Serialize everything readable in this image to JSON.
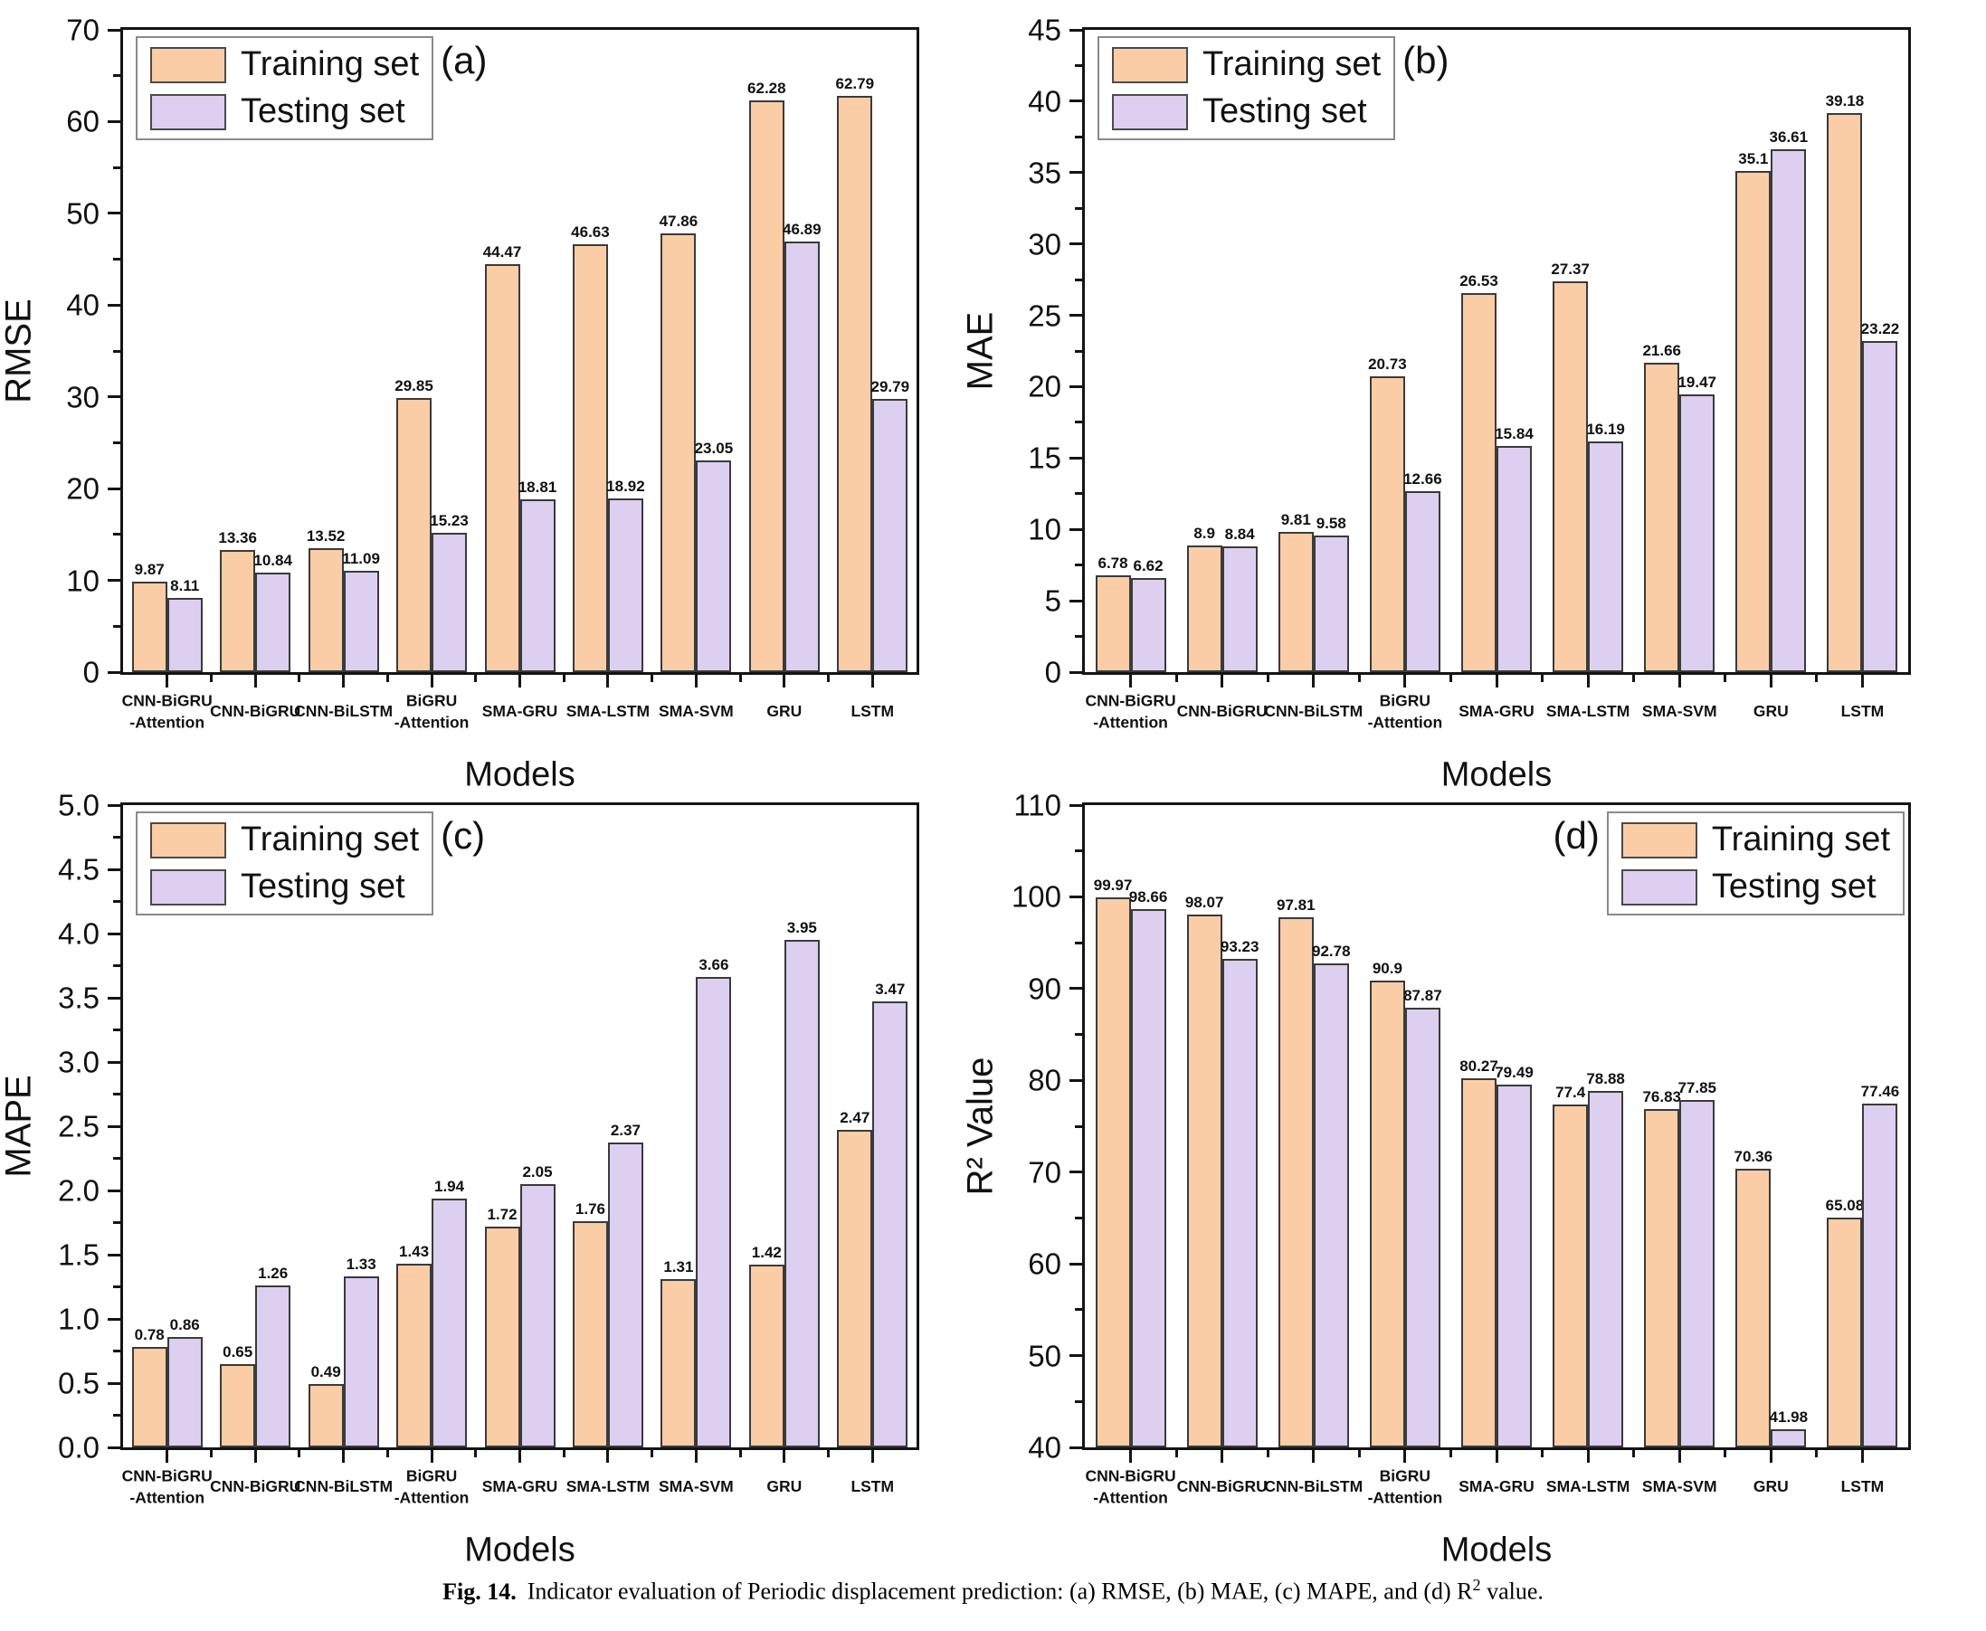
{
  "caption": {
    "prefix": "Fig. 14.",
    "body": "Indicator evaluation of Periodic displacement prediction: (a) RMSE, (b) MAE, (c) MAPE, and (d) R",
    "sup": "2",
    "tail": " value."
  },
  "colors": {
    "training_fill": "#FBCDA6",
    "testing_fill": "#DDCFF0",
    "bar_border": "#3a3a3a",
    "axis": "#141414"
  },
  "legend_labels": [
    "Training set",
    "Testing set"
  ],
  "category_lines": [
    [
      "CNN-BiGRU",
      "-Attention"
    ],
    [
      "CNN-BiGRU"
    ],
    [
      "CNN-BiLSTM"
    ],
    [
      "BiGRU",
      "-Attention"
    ],
    [
      "SMA-GRU"
    ],
    [
      "SMA-LSTM"
    ],
    [
      "SMA-SVM"
    ],
    [
      "GRU"
    ],
    [
      "LSTM"
    ]
  ],
  "chart_data": [
    {
      "id": "a",
      "type": "bar",
      "panel_label": "(a)",
      "ylabel": "RMSE",
      "xlabel": "Models",
      "ylim": [
        0,
        70
      ],
      "ytick": 10,
      "yminor": 5,
      "ydecimals": 0,
      "grid": false,
      "legend_position": "top-left",
      "categories": [
        "CNN-BiGRU-Attention",
        "CNN-BiGRU",
        "CNN-BiLSTM",
        "BiGRU-Attention",
        "SMA-GRU",
        "SMA-LSTM",
        "SMA-SVM",
        "GRU",
        "LSTM"
      ],
      "series": [
        {
          "name": "Training set",
          "values": [
            9.87,
            13.36,
            13.52,
            29.85,
            44.47,
            46.63,
            47.86,
            62.28,
            62.79
          ]
        },
        {
          "name": "Testing set",
          "values": [
            8.11,
            10.84,
            11.09,
            15.23,
            18.81,
            18.92,
            23.05,
            46.89,
            29.79
          ]
        }
      ]
    },
    {
      "id": "b",
      "type": "bar",
      "panel_label": "(b)",
      "ylabel": "MAE",
      "xlabel": "Models",
      "ylim": [
        0,
        45
      ],
      "ytick": 5,
      "yminor": 2.5,
      "ydecimals": 0,
      "grid": false,
      "legend_position": "top-left",
      "categories": [
        "CNN-BiGRU-Attention",
        "CNN-BiGRU",
        "CNN-BiLSTM",
        "BiGRU-Attention",
        "SMA-GRU",
        "SMA-LSTM",
        "SMA-SVM",
        "GRU",
        "LSTM"
      ],
      "series": [
        {
          "name": "Training set",
          "values": [
            6.78,
            8.9,
            9.81,
            20.73,
            26.53,
            27.37,
            21.66,
            35.1,
            39.18
          ]
        },
        {
          "name": "Testing set",
          "values": [
            6.62,
            8.84,
            9.58,
            12.66,
            15.84,
            16.19,
            19.47,
            36.61,
            23.22
          ]
        }
      ]
    },
    {
      "id": "c",
      "type": "bar",
      "panel_label": "(c)",
      "ylabel": "MAPE",
      "xlabel": "Models",
      "ylim": [
        0,
        5.0
      ],
      "ytick": 0.5,
      "yminor": 0.25,
      "ydecimals": 1,
      "grid": false,
      "legend_position": "top-left",
      "categories": [
        "CNN-BiGRU-Attention",
        "CNN-BiGRU",
        "CNN-BiLSTM",
        "BiGRU-Attention",
        "SMA-GRU",
        "SMA-LSTM",
        "SMA-SVM",
        "GRU",
        "LSTM"
      ],
      "series": [
        {
          "name": "Training set",
          "values": [
            0.78,
            0.65,
            0.49,
            1.43,
            1.72,
            1.76,
            1.31,
            1.42,
            2.47
          ]
        },
        {
          "name": "Testing set",
          "values": [
            0.86,
            1.26,
            1.33,
            1.94,
            2.05,
            2.37,
            3.66,
            3.95,
            3.47
          ]
        }
      ]
    },
    {
      "id": "d",
      "type": "bar",
      "panel_label": "(d)",
      "ylabel": "R² Value",
      "xlabel": "Models",
      "ylim": [
        40,
        110
      ],
      "ytick": 10,
      "yminor": 5,
      "ydecimals": 0,
      "grid": false,
      "legend_position": "top-right",
      "categories": [
        "CNN-BiGRU-Attention",
        "CNN-BiGRU",
        "CNN-BiLSTM",
        "BiGRU-Attention",
        "SMA-GRU",
        "SMA-LSTM",
        "SMA-SVM",
        "GRU",
        "LSTM"
      ],
      "series": [
        {
          "name": "Training set",
          "values": [
            99.97,
            98.07,
            97.81,
            90.9,
            80.27,
            77.4,
            76.83,
            70.36,
            65.08
          ]
        },
        {
          "name": "Testing set",
          "values": [
            98.66,
            93.23,
            92.78,
            87.87,
            79.49,
            78.88,
            77.85,
            41.98,
            77.46
          ]
        }
      ]
    }
  ]
}
